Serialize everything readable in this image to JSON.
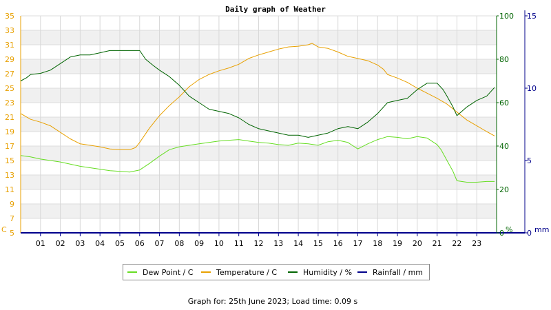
{
  "chart_data": {
    "type": "line",
    "title": "Daily graph of Weather",
    "left_axis": {
      "unit": "C",
      "range": [
        5,
        35
      ],
      "ticks": [
        5,
        7,
        9,
        11,
        13,
        15,
        17,
        19,
        21,
        23,
        25,
        27,
        29,
        31,
        33,
        35
      ],
      "color": "#e8a000"
    },
    "right_axis_humidity": {
      "unit": "%",
      "range": [
        0,
        100
      ],
      "ticks": [
        0,
        20,
        40,
        60,
        80,
        100
      ],
      "color": "#006400"
    },
    "right_axis_rainfall": {
      "unit": "mm",
      "range": [
        0,
        15
      ],
      "ticks": [
        0,
        5,
        10,
        15
      ],
      "color": "#00008b"
    },
    "x_axis": {
      "range": [
        0,
        24
      ],
      "tick_labels": [
        "01",
        "02",
        "03",
        "04",
        "05",
        "06",
        "07",
        "08",
        "09",
        "10",
        "11",
        "12",
        "13",
        "14",
        "15",
        "16",
        "17",
        "18",
        "19",
        "20",
        "21",
        "22",
        "23"
      ]
    },
    "grid": true,
    "legend_position": "bottom",
    "series": [
      {
        "name": "Dew Point / C",
        "color": "#66dd22",
        "axis": "left",
        "x": [
          0,
          0.5,
          1,
          1.5,
          2,
          2.5,
          3,
          3.5,
          4,
          4.5,
          5,
          5.5,
          6,
          6.5,
          7,
          7.5,
          8,
          8.5,
          9,
          9.5,
          10,
          10.5,
          11,
          11.5,
          12,
          12.5,
          13,
          13.5,
          14,
          14.5,
          15,
          15.5,
          16,
          16.5,
          17,
          17.5,
          18,
          18.5,
          19,
          19.5,
          20,
          20.5,
          21,
          21.2,
          21.5,
          21.8,
          22,
          22.5,
          23,
          23.5,
          23.9
        ],
        "y": [
          15.7,
          15.5,
          15.2,
          15.0,
          14.8,
          14.5,
          14.2,
          14.0,
          13.8,
          13.6,
          13.5,
          13.4,
          13.7,
          14.6,
          15.6,
          16.5,
          16.9,
          17.1,
          17.3,
          17.5,
          17.7,
          17.8,
          17.9,
          17.7,
          17.5,
          17.4,
          17.2,
          17.1,
          17.4,
          17.3,
          17.1,
          17.6,
          17.8,
          17.5,
          16.6,
          17.3,
          17.9,
          18.3,
          18.2,
          18.0,
          18.3,
          18.1,
          17.2,
          16.5,
          15.0,
          13.5,
          12.2,
          12.0,
          12.0,
          12.1,
          12.1
        ]
      },
      {
        "name": "Temperature / C",
        "color": "#e8a000",
        "axis": "left",
        "x": [
          0,
          0.5,
          1,
          1.5,
          2,
          2.5,
          3,
          3.5,
          4,
          4.5,
          5,
          5.5,
          5.8,
          6,
          6.5,
          7,
          7.5,
          8,
          8.5,
          9,
          9.5,
          10,
          10.5,
          11,
          11.5,
          12,
          12.5,
          13,
          13.5,
          14,
          14.5,
          14.7,
          15,
          15.5,
          16,
          16.5,
          17,
          17.5,
          18,
          18.3,
          18.5,
          19,
          19.5,
          20,
          20.5,
          21,
          21.5,
          22,
          22.5,
          23,
          23.5,
          23.9
        ],
        "y": [
          21.5,
          20.7,
          20.3,
          19.8,
          18.9,
          18.0,
          17.3,
          17.1,
          16.9,
          16.6,
          16.5,
          16.5,
          16.8,
          17.5,
          19.5,
          21.2,
          22.6,
          23.8,
          25.2,
          26.2,
          26.9,
          27.4,
          27.8,
          28.3,
          29.1,
          29.6,
          30.0,
          30.4,
          30.7,
          30.8,
          31.0,
          31.2,
          30.7,
          30.5,
          30.0,
          29.4,
          29.1,
          28.8,
          28.2,
          27.6,
          26.9,
          26.4,
          25.8,
          25.0,
          24.3,
          23.6,
          22.8,
          21.7,
          20.6,
          19.8,
          19.0,
          18.4
        ]
      },
      {
        "name": "Humidity / %",
        "color": "#006400",
        "axis": "right_humidity",
        "x": [
          0,
          0.3,
          0.5,
          1,
          1.5,
          2,
          2.5,
          3,
          3.5,
          4,
          4.5,
          5,
          5.5,
          6,
          6.3,
          6.7,
          7,
          7.5,
          8,
          8.5,
          9,
          9.5,
          10,
          10.5,
          11,
          11.5,
          12,
          12.5,
          13,
          13.5,
          14,
          14.5,
          15,
          15.5,
          16,
          16.5,
          17,
          17.5,
          18,
          18.5,
          19,
          19.5,
          20,
          20.5,
          21,
          21.3,
          21.5,
          21.8,
          22,
          22.5,
          23,
          23.5,
          23.9
        ],
        "y": [
          70,
          71.5,
          73,
          73.5,
          75,
          78,
          81,
          82,
          82,
          83,
          84,
          84,
          84,
          84,
          80,
          77,
          75,
          72,
          68,
          63,
          60,
          57,
          56,
          55,
          53,
          50,
          48,
          47,
          46,
          45,
          45,
          44,
          45,
          46,
          48,
          49,
          48,
          51,
          55,
          60,
          61,
          62,
          66,
          69,
          69,
          66,
          63,
          58,
          54,
          58,
          61,
          63,
          67
        ]
      },
      {
        "name": "Rainfall / mm",
        "color": "#00008b",
        "axis": "right_rainfall",
        "x": [
          0,
          24
        ],
        "y": [
          0,
          0
        ]
      }
    ]
  },
  "footer": "Graph for: 25th June 2023; Load time: 0.09 s"
}
